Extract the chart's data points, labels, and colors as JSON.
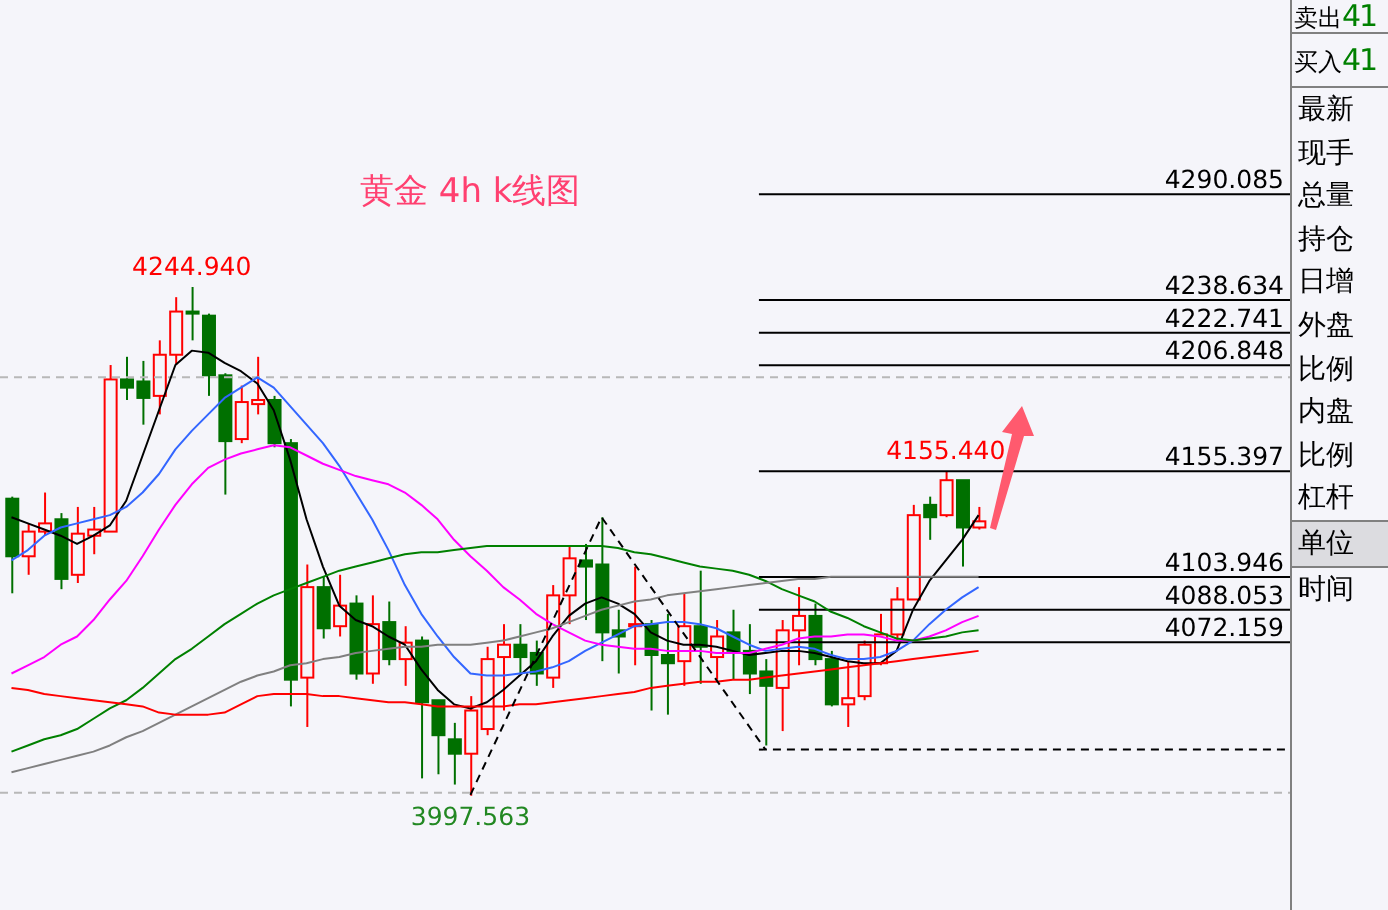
{
  "chart_data": {
    "type": "candlestick",
    "title": "黄金 4h k线图",
    "categories": [
      null,
      null,
      null,
      null,
      null,
      null,
      null,
      null,
      null,
      null,
      null,
      null,
      null,
      null,
      null,
      null,
      null,
      null,
      null,
      null,
      null,
      null,
      null,
      null,
      null,
      null,
      null,
      null,
      null,
      null,
      null,
      null,
      null,
      null,
      null,
      null,
      null,
      null,
      null,
      null,
      null,
      null,
      null,
      null,
      null,
      null,
      null,
      null,
      null,
      null,
      null,
      null,
      null,
      null,
      null,
      null,
      null,
      null,
      null,
      null
    ],
    "ylim": [
      3942,
      4384.5
    ],
    "tick_labels": false,
    "series": [
      {
        "type": "candlestick",
        "ohlc": [
          [
            4142,
            4143,
            4096,
            4114
          ],
          [
            4114,
            4130,
            4105,
            4126
          ],
          [
            4126,
            4145,
            4124,
            4130
          ],
          [
            4132,
            4135,
            4098,
            4103
          ],
          [
            4105,
            4138,
            4101,
            4125
          ],
          [
            4124,
            4138,
            4115,
            4127
          ],
          [
            4126,
            4207,
            4126,
            4200
          ],
          [
            4200,
            4211,
            4190,
            4196
          ],
          [
            4199,
            4209,
            4178,
            4191
          ],
          [
            4192,
            4219,
            4183,
            4212
          ],
          [
            4212,
            4240,
            4207,
            4233
          ],
          [
            4233,
            4244.94,
            4219,
            4232
          ],
          [
            4231,
            4232,
            4192,
            4202
          ],
          [
            4202,
            4203,
            4144,
            4170
          ],
          [
            4171,
            4197,
            4169,
            4189
          ],
          [
            4188,
            4211,
            4183,
            4190
          ],
          [
            4190,
            4192,
            4167,
            4169
          ],
          [
            4169,
            4171,
            4041,
            4054
          ],
          [
            4055,
            4110,
            4031,
            4099
          ],
          [
            4099,
            4104,
            4074,
            4079
          ],
          [
            4080,
            4105,
            4075,
            4090
          ],
          [
            4091,
            4095,
            4054,
            4057
          ],
          [
            4057,
            4095,
            4052,
            4081
          ],
          [
            4082,
            4092,
            4061,
            4064
          ],
          [
            4064,
            4080,
            4051,
            4072
          ],
          [
            4073,
            4075,
            4006,
            4043
          ],
          [
            4044,
            4044,
            4008,
            4027
          ],
          [
            4025,
            4033,
            4003,
            4018
          ],
          [
            4018,
            4046,
            3997.563,
            4039
          ],
          [
            4030,
            4070,
            4027,
            4064
          ],
          [
            4065,
            4081,
            4039,
            4071
          ],
          [
            4071,
            4081,
            4057,
            4065
          ],
          [
            4067,
            4073,
            4051,
            4057
          ],
          [
            4055,
            4100,
            4050,
            4095
          ],
          [
            4095,
            4119,
            4081,
            4113
          ],
          [
            4112,
            4120,
            4083,
            4109
          ],
          [
            4110,
            4133,
            4063,
            4077
          ],
          [
            4078,
            4088,
            4057,
            4075
          ],
          [
            4080,
            4109,
            4061,
            4081
          ],
          [
            4081,
            4083,
            4039,
            4066
          ],
          [
            4066,
            4086,
            4037,
            4062
          ],
          [
            4063,
            4096,
            4051,
            4080
          ],
          [
            4080,
            4107,
            4052,
            4070
          ],
          [
            4065,
            4083,
            4054,
            4075
          ],
          [
            4077,
            4088,
            4054,
            4068
          ],
          [
            4068,
            4081,
            4047,
            4057
          ],
          [
            4058,
            4064,
            4022,
            4051
          ],
          [
            4050,
            4083,
            4029,
            4078
          ],
          [
            4078,
            4099,
            4061,
            4085
          ],
          [
            4085,
            4091,
            4061,
            4064
          ],
          [
            4064,
            4068,
            4041,
            4042
          ],
          [
            4042,
            4063,
            4031,
            4045
          ],
          [
            4046,
            4073,
            4044,
            4071
          ],
          [
            4062,
            4086,
            4061,
            4076
          ],
          [
            4076,
            4099,
            4073,
            4093
          ],
          [
            4093,
            4139,
            4093,
            4134
          ],
          [
            4139,
            4143,
            4122,
            4133
          ],
          [
            4134,
            4155.44,
            4133,
            4151
          ],
          [
            4151,
            4151,
            4109,
            4128
          ],
          [
            4128,
            4138,
            4127,
            4131
          ]
        ],
        "colors": [
          "#007000",
          "#ff0000",
          "#ff0000",
          "#007000",
          "#ff0000",
          "#ff0000",
          "#ff0000",
          "#007000",
          "#007000",
          "#ff0000",
          "#ff0000",
          "#007000",
          "#007000",
          "#007000",
          "#ff0000",
          "#ff0000",
          "#007000",
          "#007000",
          "#ff0000",
          "#007000",
          "#ff0000",
          "#007000",
          "#ff0000",
          "#007000",
          "#ff0000",
          "#007000",
          "#007000",
          "#007000",
          "#ff0000",
          "#ff0000",
          "#ff0000",
          "#007000",
          "#007000",
          "#ff0000",
          "#ff0000",
          "#007000",
          "#007000",
          "#007000",
          "#ff0000",
          "#007000",
          "#007000",
          "#ff0000",
          "#007000",
          "#ff0000",
          "#007000",
          "#007000",
          "#007000",
          "#ff0000",
          "#ff0000",
          "#007000",
          "#007000",
          "#ff0000",
          "#ff0000",
          "#ff0000",
          "#ff0000",
          "#ff0000",
          "#007000",
          "#ff0000",
          "#007000",
          "#ff0000"
        ]
      },
      {
        "type": "line",
        "color": "#000000",
        "values": [
          4133,
          4130,
          4127,
          4124,
          4120,
          4124,
          4129,
          4141,
          4163,
          4185,
          4207,
          4214,
          4213,
          4208,
          4204,
          4198,
          4185,
          4161,
          4132,
          4109,
          4090,
          4083,
          4080,
          4075,
          4071,
          4059,
          4049,
          4042,
          4040,
          4043,
          4049,
          4056,
          4063,
          4075,
          4085,
          4091,
          4094,
          4091,
          4086,
          4077,
          4073,
          4071,
          4071,
          4070,
          4068,
          4066,
          4067,
          4068,
          4068,
          4067,
          4065,
          4063,
          4062,
          4062,
          4068,
          4088,
          4102,
          4112,
          4122,
          4134
        ]
      },
      {
        "type": "line",
        "color": "#3366ff",
        "values": [
          4112,
          4117,
          4124,
          4128,
          4130,
          4132,
          4134,
          4138,
          4145,
          4154,
          4166,
          4175,
          4183,
          4191,
          4196,
          4201,
          4196,
          4187,
          4178,
          4169,
          4158,
          4145,
          4132,
          4117,
          4100,
          4086,
          4075,
          4065,
          4057,
          4056,
          4056,
          4057,
          4058,
          4060,
          4063,
          4068,
          4072,
          4076,
          4080,
          4081,
          4082,
          4082,
          4081,
          4079,
          4075,
          4071,
          4068,
          4069,
          4070,
          4069,
          4066,
          4064,
          4064,
          4065,
          4068,
          4073,
          4081,
          4088,
          4094,
          4099
        ]
      },
      {
        "type": "line",
        "color": "#ff00ff",
        "values": [
          4057,
          4061,
          4065,
          4071,
          4075,
          4083,
          4093,
          4102,
          4114,
          4127,
          4139,
          4149,
          4157,
          4161,
          4164,
          4166,
          4168,
          4167,
          4163,
          4159,
          4156,
          4153,
          4151,
          4149,
          4145,
          4139,
          4132,
          4122,
          4114,
          4107,
          4099,
          4093,
          4086,
          4081,
          4077,
          4073,
          4071,
          4070,
          4069,
          4069,
          4068,
          4068,
          4068,
          4067,
          4067,
          4067,
          4069,
          4071,
          4074,
          4075,
          4075,
          4076,
          4076,
          4075,
          4073,
          4073,
          4075,
          4078,
          4082,
          4085
        ]
      },
      {
        "type": "line",
        "color": "#008000",
        "values": [
          4019,
          4022,
          4025,
          4027,
          4030,
          4035,
          4040,
          4044,
          4050,
          4057,
          4064,
          4069,
          4075,
          4081,
          4086,
          4091,
          4095,
          4098,
          4101,
          4104,
          4107,
          4109,
          4111,
          4113,
          4115,
          4116,
          4116,
          4117,
          4118,
          4119,
          4119,
          4119,
          4119,
          4119,
          4119,
          4119,
          4119,
          4118,
          4116,
          4115,
          4113,
          4111,
          4109,
          4108,
          4107,
          4105,
          4102,
          4098,
          4095,
          4092,
          4087,
          4084,
          4080,
          4077,
          4074,
          4073,
          4074,
          4075,
          4077,
          4078
        ]
      },
      {
        "type": "line",
        "color": "#808080",
        "values": [
          4009,
          4011,
          4013,
          4015,
          4017,
          4019,
          4022,
          4026,
          4029,
          4033,
          4037,
          4041,
          4045,
          4049,
          4053,
          4056,
          4058,
          4061,
          4062,
          4064,
          4065,
          4067,
          4068,
          4069,
          4070,
          4070,
          4071,
          4071,
          4071,
          4072,
          4073,
          4075,
          4077,
          4079,
          4082,
          4085,
          4088,
          4090,
          4092,
          4093,
          4095,
          4096,
          4097,
          4098,
          4099,
          4100,
          4101,
          4102,
          4103,
          4103,
          4104,
          4104,
          4104,
          4104,
          4104,
          4104,
          4104,
          4104,
          4104,
          4104
        ]
      },
      {
        "type": "line",
        "color": "#ff0000",
        "values": [
          4050,
          4049,
          4047,
          4046,
          4045,
          4044,
          4043,
          4042,
          4041,
          4038,
          4037,
          4037,
          4037,
          4038,
          4042,
          4046,
          4047,
          4047,
          4047,
          4046,
          4046,
          4045,
          4044,
          4043,
          4043,
          4042,
          4041,
          4041,
          4041,
          4041,
          4041,
          4042,
          4042,
          4043,
          4044,
          4045,
          4046,
          4047,
          4048,
          4050,
          4051,
          4052,
          4053,
          4053,
          4054,
          4054,
          4055,
          4056,
          4057,
          4058,
          4059,
          4060,
          4061,
          4062,
          4063,
          4064,
          4065,
          4066,
          4067,
          4068
        ]
      },
      {
        "type": "line",
        "color": "#000000",
        "line_style": "dashed",
        "values": [
          null,
          null,
          null,
          null,
          null,
          null,
          null,
          null,
          null,
          null,
          null,
          null,
          null,
          null,
          null,
          null,
          null,
          null,
          null,
          null,
          null,
          null,
          null,
          null,
          null,
          null,
          null,
          null,
          3998,
          null,
          null,
          null,
          null,
          null,
          null,
          null,
          4133,
          null,
          null,
          null,
          null,
          null,
          null,
          null,
          null,
          null,
          4020,
          null,
          null,
          null,
          null,
          null,
          null,
          null,
          null,
          null,
          null,
          null,
          null,
          null
        ]
      }
    ],
    "ref_lines": [
      {
        "axis": "y",
        "value": 4290.085,
        "label": "4290.085",
        "color": "#000000"
      },
      {
        "axis": "y",
        "value": 4238.634,
        "label": "4238.634",
        "color": "#000000"
      },
      {
        "axis": "y",
        "value": 4222.741,
        "label": "4222.741",
        "color": "#000000"
      },
      {
        "axis": "y",
        "value": 4206.848,
        "label": "4206.848",
        "color": "#000000"
      },
      {
        "axis": "y",
        "value": 4155.397,
        "label": "4155.397",
        "color": "#000000"
      },
      {
        "axis": "y",
        "value": 4103.946,
        "label": "4103.946",
        "color": "#000000"
      },
      {
        "axis": "y",
        "value": 4088.053,
        "label": "4088.053",
        "color": "#000000"
      },
      {
        "axis": "y",
        "value": 4072.159,
        "label": "4072.159",
        "color": "#000000"
      },
      {
        "axis": "y",
        "value": 4020,
        "color": "#000000",
        "line_style": "dashed"
      },
      {
        "axis": "y",
        "value": 4201,
        "color": "#b8b8b8",
        "line_style": "dashed"
      },
      {
        "axis": "y",
        "value": 3999,
        "color": "#b8b8b8",
        "line_style": "dashed"
      }
    ],
    "annotations": [
      {
        "text": "4244.940",
        "y": 4244.94
      },
      {
        "text": "3997.563",
        "y": 3997.563
      },
      {
        "text": "4155.440",
        "y": 4155.44
      },
      "卖出41",
      "买入41",
      "最新",
      "现手",
      "总量",
      "持仓",
      "日增",
      "外盘",
      "比例",
      "内盘",
      "比例",
      "杠杆",
      "单位",
      "时间"
    ]
  }
}
